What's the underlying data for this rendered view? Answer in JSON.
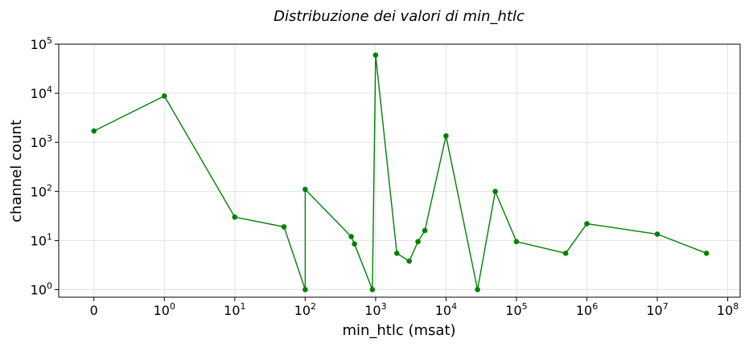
{
  "chart_data": {
    "type": "line",
    "title": "Distribuzione dei valori di min_htlc",
    "xlabel": "min_htlc (msat)",
    "ylabel": "channel count",
    "x_scale": "symlog",
    "y_scale": "log",
    "xlim": [
      -0.5,
      150000000
    ],
    "ylim": [
      0.7,
      100000
    ],
    "grid": true,
    "series": [
      {
        "color": "#008000",
        "marker": "circle",
        "x": [
          0,
          1,
          10,
          50,
          100,
          100,
          450,
          500,
          900,
          1000,
          2000,
          3000,
          4000,
          5000,
          10000,
          28000,
          50000,
          100000,
          500000,
          1000000,
          10000000,
          50000000
        ],
        "y": [
          1700,
          8800,
          30,
          19,
          1,
          110,
          12,
          8.5,
          1,
          60000,
          5.5,
          3.8,
          9.5,
          16,
          1350,
          1,
          100,
          9.5,
          5.5,
          22,
          13.5,
          5.5
        ]
      }
    ],
    "x_ticks": [
      {
        "value": 0,
        "label": "0"
      },
      {
        "value": 1,
        "label": "10",
        "exp": "0"
      },
      {
        "value": 10,
        "label": "10",
        "exp": "1"
      },
      {
        "value": 100,
        "label": "10",
        "exp": "2"
      },
      {
        "value": 1000,
        "label": "10",
        "exp": "3"
      },
      {
        "value": 10000,
        "label": "10",
        "exp": "4"
      },
      {
        "value": 100000,
        "label": "10",
        "exp": "5"
      },
      {
        "value": 1000000,
        "label": "10",
        "exp": "6"
      },
      {
        "value": 10000000,
        "label": "10",
        "exp": "7"
      },
      {
        "value": 100000000,
        "label": "10",
        "exp": "8"
      }
    ],
    "y_ticks": [
      {
        "value": 1,
        "label": "10",
        "exp": "0"
      },
      {
        "value": 10,
        "label": "10",
        "exp": "1"
      },
      {
        "value": 100,
        "label": "10",
        "exp": "2"
      },
      {
        "value": 1000,
        "label": "10",
        "exp": "3"
      },
      {
        "value": 10000,
        "label": "10",
        "exp": "4"
      },
      {
        "value": 100000,
        "label": "10",
        "exp": "5"
      }
    ]
  }
}
